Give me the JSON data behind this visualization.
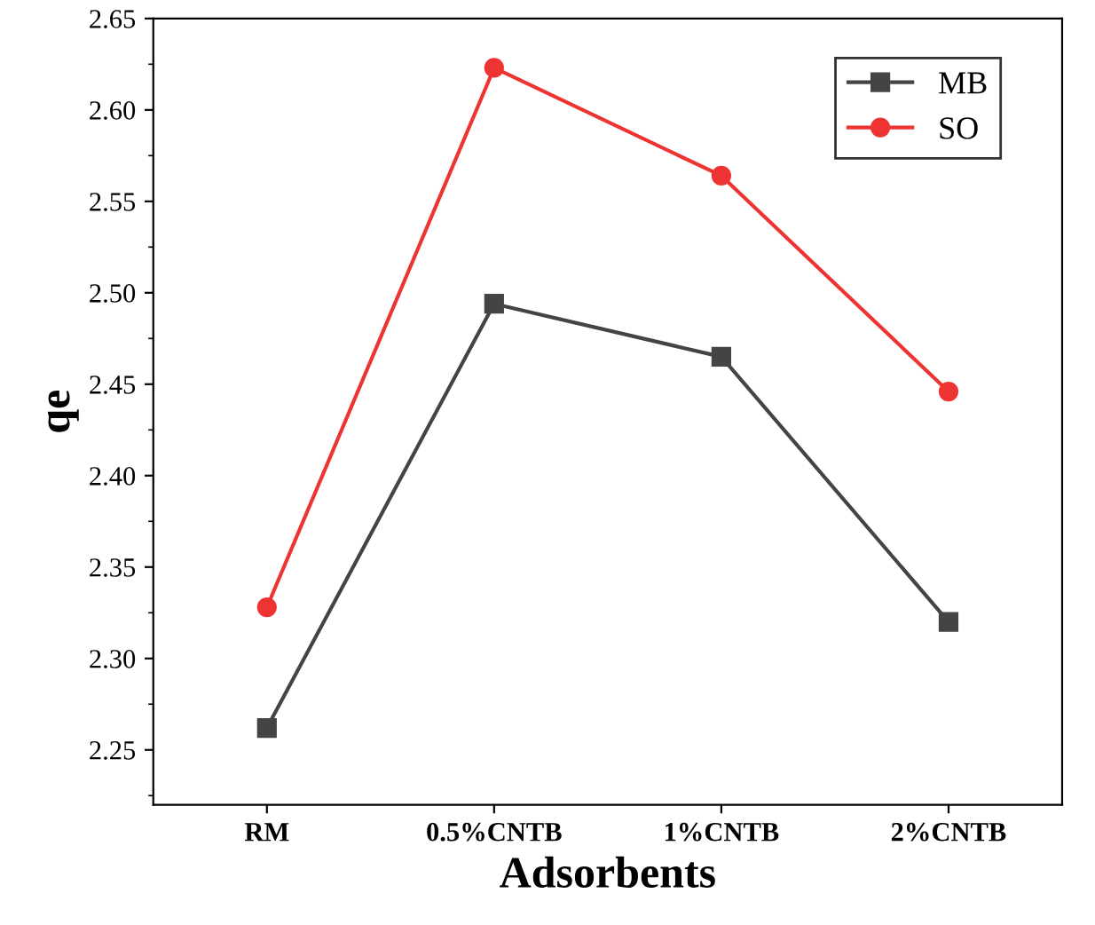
{
  "chart_data": {
    "type": "line",
    "xlabel": "Adsorbents",
    "ylabel": "qe",
    "categories": [
      "RM",
      "0.5%CNTB",
      "1%CNTB",
      "2%CNTB"
    ],
    "series": [
      {
        "name": "MB",
        "color": "#444444",
        "values": [
          2.262,
          2.494,
          2.465,
          2.32
        ],
        "marker": "square"
      },
      {
        "name": "SO",
        "color": "#ee3333",
        "values": [
          2.328,
          2.623,
          2.564,
          2.446
        ],
        "marker": "circle"
      }
    ],
    "ylim": [
      2.22,
      2.65
    ],
    "yticks": [
      2.25,
      {
        "value": 2.3,
        "label": "2.30"
      },
      2.35,
      {
        "value": 2.4,
        "label": "2.40"
      },
      2.45,
      {
        "value": 2.5,
        "label": "2.50"
      },
      2.55,
      {
        "value": 2.6,
        "label": "2.60"
      },
      2.65
    ],
    "grid": false,
    "legend": "top right",
    "line_style": "solid"
  }
}
